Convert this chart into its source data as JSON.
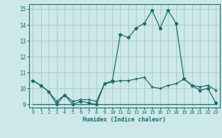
{
  "title": "",
  "xlabel": "Humidex (Indice chaleur)",
  "ylabel": "",
  "bg_color": "#cce8e8",
  "grid_color": "#aacccc",
  "line_color": "#1a6b6b",
  "xlim": [
    -0.5,
    23.5
  ],
  "ylim": [
    8.8,
    15.3
  ],
  "xticks": [
    0,
    1,
    2,
    3,
    4,
    5,
    6,
    7,
    8,
    9,
    10,
    11,
    12,
    13,
    14,
    15,
    16,
    17,
    18,
    19,
    20,
    21,
    22,
    23
  ],
  "yticks": [
    9,
    10,
    11,
    12,
    13,
    14,
    15
  ],
  "line1_x": [
    0,
    1,
    2,
    3,
    4,
    5,
    6,
    7,
    8,
    9,
    10,
    11,
    12,
    13,
    14,
    15,
    16,
    17,
    18,
    19,
    20,
    21,
    22,
    23
  ],
  "line1_y": [
    10.5,
    10.2,
    9.8,
    9.0,
    9.6,
    9.0,
    9.2,
    9.1,
    9.0,
    10.3,
    10.5,
    13.4,
    13.2,
    13.8,
    14.1,
    14.9,
    13.8,
    14.9,
    14.1,
    10.6,
    10.2,
    9.9,
    10.0,
    9.1
  ],
  "line2_x": [
    0,
    1,
    2,
    3,
    4,
    5,
    6,
    7,
    8,
    9,
    10,
    11,
    12,
    13,
    14,
    15,
    16,
    17,
    18,
    19,
    20,
    21,
    22,
    23
  ],
  "line2_y": [
    10.5,
    10.2,
    9.8,
    9.2,
    9.6,
    9.2,
    9.3,
    9.3,
    9.2,
    10.3,
    10.4,
    10.5,
    10.5,
    10.6,
    10.7,
    10.1,
    10.0,
    10.2,
    10.3,
    10.6,
    10.2,
    10.1,
    10.2,
    9.9
  ],
  "line3_x": [
    0,
    1,
    2,
    3,
    4,
    5,
    6,
    7,
    8,
    9,
    10,
    11,
    12,
    13,
    14,
    15,
    16,
    17,
    18,
    19,
    20,
    21,
    22,
    23
  ],
  "line3_y": [
    9.0,
    9.0,
    9.0,
    9.0,
    9.0,
    9.0,
    9.0,
    9.0,
    9.0,
    9.0,
    9.0,
    9.0,
    9.0,
    9.0,
    9.0,
    9.0,
    9.0,
    9.0,
    9.0,
    9.0,
    9.0,
    9.0,
    9.0,
    9.0
  ]
}
